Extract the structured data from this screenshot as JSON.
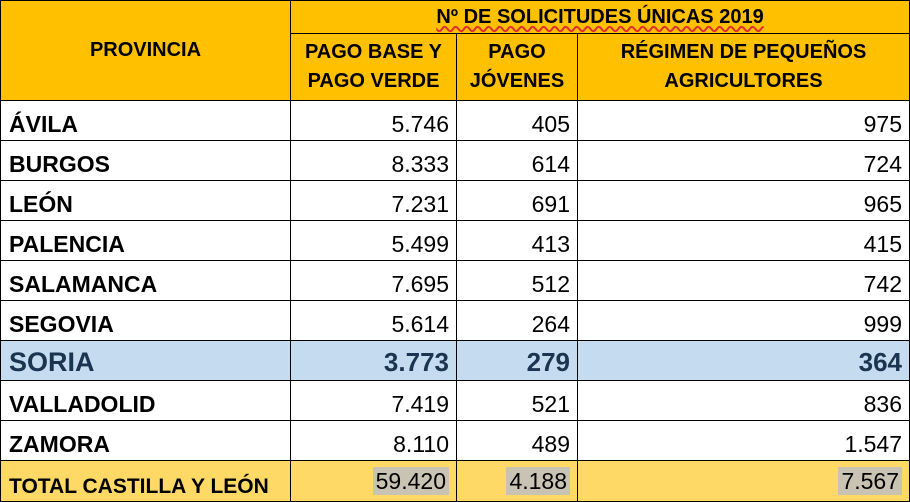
{
  "header": {
    "group_title": "Nº DE SOLICITUDES  ÚNICAS 2019",
    "province_label": "PROVINCIA",
    "col_pago_base_l1": "PAGO BASE Y",
    "col_pago_base_l2": "PAGO VERDE",
    "col_pago_jovenes_l1": "PAGO",
    "col_pago_jovenes_l2": "JÓVENES",
    "col_regimen_l1": "RÉGIMEN DE PEQUEÑOS",
    "col_regimen_l2": "AGRICULTORES"
  },
  "rows": [
    {
      "provincia": "ÁVILA",
      "pago_base": "5.746",
      "pago_jovenes": "405",
      "regimen": "975"
    },
    {
      "provincia": "BURGOS",
      "pago_base": "8.333",
      "pago_jovenes": "614",
      "regimen": "724"
    },
    {
      "provincia": "LEÓN",
      "pago_base": "7.231",
      "pago_jovenes": "691",
      "regimen": "965"
    },
    {
      "provincia": "PALENCIA",
      "pago_base": "5.499",
      "pago_jovenes": "413",
      "regimen": "415"
    },
    {
      "provincia": "SALAMANCA",
      "pago_base": "7.695",
      "pago_jovenes": "512",
      "regimen": "742"
    },
    {
      "provincia": "SEGOVIA",
      "pago_base": "5.614",
      "pago_jovenes": "264",
      "regimen": "999"
    },
    {
      "provincia": "SORIA",
      "pago_base": "3.773",
      "pago_jovenes": "279",
      "regimen": "364"
    },
    {
      "provincia": "VALLADOLID",
      "pago_base": "7.419",
      "pago_jovenes": "521",
      "regimen": "836"
    },
    {
      "provincia": "ZAMORA",
      "pago_base": "8.110",
      "pago_jovenes": "489",
      "regimen": "1.547"
    }
  ],
  "total": {
    "provincia": "TOTAL CASTILLA Y LEÓN",
    "pago_base": "59.420",
    "pago_jovenes": "4.188",
    "regimen": "7.567"
  },
  "colors": {
    "header_bg": "#ffc000",
    "highlight_bg": "#c5dcf0",
    "total_bg": "#ffd966"
  }
}
